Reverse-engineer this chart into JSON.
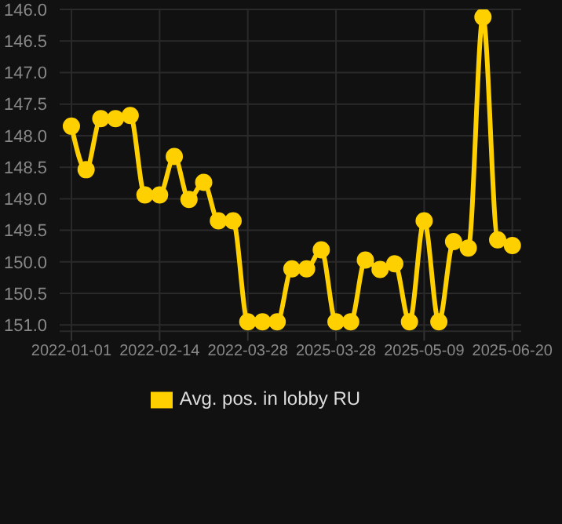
{
  "chart_data": {
    "type": "line",
    "categories": [
      "2022-01-01",
      null,
      null,
      null,
      null,
      null,
      "2022-02-14",
      null,
      null,
      null,
      null,
      null,
      "2022-03-28",
      null,
      null,
      null,
      null,
      null,
      "2025-03-28",
      null,
      null,
      null,
      null,
      null,
      "2025-05-09",
      null,
      null,
      null,
      null,
      null,
      "2025-06-20"
    ],
    "series": [
      {
        "name": "Avg. pos. in lobby RU",
        "color": "#ffd000",
        "values": [
          147.85,
          148.54,
          147.73,
          147.73,
          147.68,
          148.94,
          148.94,
          148.33,
          149.01,
          148.74,
          149.35,
          149.35,
          150.95,
          150.95,
          150.95,
          150.11,
          150.11,
          149.81,
          150.95,
          150.95,
          149.97,
          150.12,
          150.03,
          150.95,
          149.35,
          150.95,
          149.68,
          149.78,
          146.12,
          149.65,
          149.74
        ]
      }
    ],
    "ylim": [
      151.1,
      146.0
    ],
    "yticks": [
      {
        "value": 146,
        "label": "146.0"
      },
      {
        "value": 146.5,
        "label": "146.5"
      },
      {
        "value": 147,
        "label": "147.0"
      },
      {
        "value": 147.5,
        "label": "147.5"
      },
      {
        "value": 148,
        "label": "148.0"
      },
      {
        "value": 148.5,
        "label": "148.5"
      },
      {
        "value": 149,
        "label": "149.0"
      },
      {
        "value": 149.5,
        "label": "149.5"
      },
      {
        "value": 150,
        "label": "150.0"
      },
      {
        "value": 150.5,
        "label": "150.5"
      },
      {
        "value": 151,
        "label": "151.0"
      }
    ],
    "grid": true,
    "legend": "bottom",
    "marker": "circle",
    "line_style": "solid"
  }
}
